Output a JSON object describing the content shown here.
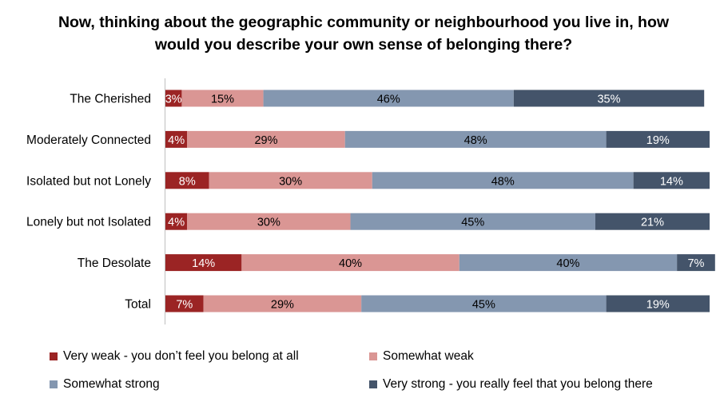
{
  "chart_data": {
    "type": "bar",
    "orientation": "horizontal",
    "stacked": true,
    "title": "Now, thinking about the geographic community or neighbourhood you live in, how would you describe your own sense of belonging there?",
    "categories": [
      "The Cherished",
      "Moderately Connected",
      "Isolated but not Lonely",
      "Lonely but not Isolated",
      "The Desolate",
      "Total"
    ],
    "series": [
      {
        "name": "Very weak - you don’t feel you belong at all",
        "color": "#9b2424",
        "values": [
          3,
          4,
          8,
          4,
          14,
          7
        ]
      },
      {
        "name": "Somewhat weak",
        "color": "#da9694",
        "values": [
          15,
          29,
          30,
          30,
          40,
          29
        ]
      },
      {
        "name": "Somewhat strong",
        "color": "#8497b0",
        "values": [
          46,
          48,
          48,
          45,
          40,
          45
        ]
      },
      {
        "name": "Very strong - you really feel that you belong there",
        "color": "#44546a",
        "values": [
          35,
          19,
          14,
          21,
          7,
          19
        ]
      }
    ],
    "value_suffix": "%",
    "xlim": [
      0,
      100
    ],
    "grid": false,
    "legend_position": "bottom"
  }
}
